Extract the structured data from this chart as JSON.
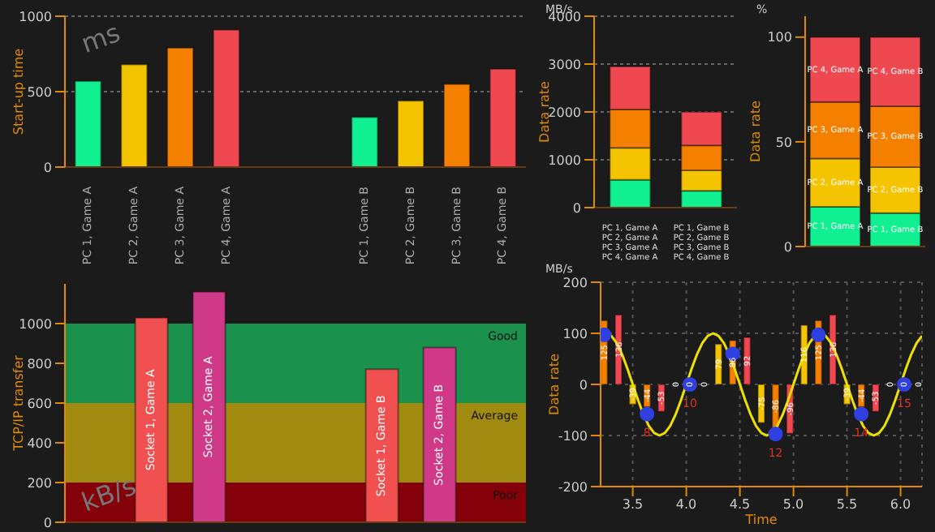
{
  "chart_data": [
    {
      "type": "bar",
      "ylabel": "Start-up time",
      "categories": [
        "PC 1, Game A",
        "PC 2, Game A",
        "PC 3, Game A",
        "PC 4, Game A",
        null,
        null,
        "PC 1, Game B",
        "PC 2, Game B",
        "PC 3, Game B",
        "PC 4, Game B"
      ],
      "values": [
        570,
        680,
        790,
        910,
        null,
        null,
        330,
        440,
        550,
        650
      ],
      "colors": [
        "#10f090",
        "#f5c400",
        "#f58000",
        "#f04850",
        "#10f090",
        "#f5c400",
        "#10f090",
        "#f5c400",
        "#f58000",
        "#f04850"
      ],
      "ylim": [
        0,
        1000
      ],
      "yticks": [
        0,
        500,
        1000
      ],
      "grid": "y",
      "annotations": [
        "ms"
      ]
    },
    {
      "type": "bar",
      "ylabel": "TCP/IP transfer",
      "categories": [
        null,
        "Socket 1, Game A",
        "Socket 2, Game A",
        null,
        null,
        "Socket 1, Game B",
        "Socket 2, Game B",
        null
      ],
      "values": [
        null,
        1030,
        1160,
        null,
        null,
        770,
        880,
        null
      ],
      "colors": [
        "#f05050",
        "#f05050",
        "#d03888",
        "#f05050",
        "#f05050",
        "#f05050",
        "#d03888",
        "#f05050"
      ],
      "ylim": [
        0,
        1200
      ],
      "yticks": [
        0,
        200,
        400,
        600,
        800,
        1000
      ],
      "bands": [
        {
          "axis": "y",
          "from": 0,
          "to": 200,
          "label": "Poor",
          "color": "#8a0008"
        },
        {
          "axis": "y",
          "from": 200,
          "to": 600,
          "label": "Average",
          "color": "#a89010"
        },
        {
          "axis": "y",
          "from": 600,
          "to": 1000,
          "label": "Good",
          "color": "#1a9850"
        }
      ],
      "annotations": [
        "kB/s"
      ]
    },
    {
      "type": "bar",
      "stacked": true,
      "ylabel": "Data rate",
      "categories": [
        "PC 1, Game A\nPC 2, Game A\nPC 3, Game A\nPC 4, Game A",
        "PC 1, Game B\nPC 2, Game B\nPC 3, Game B\nPC 4, Game B"
      ],
      "series": [
        {
          "color": "#10f090",
          "values": [
            580,
            350
          ]
        },
        {
          "color": "#f5c400",
          "values": [
            670,
            430
          ]
        },
        {
          "color": "#f58000",
          "values": [
            800,
            520
          ]
        },
        {
          "color": "#f04850",
          "values": [
            900,
            700
          ]
        }
      ],
      "ylim": [
        0,
        4000
      ],
      "yticks": [
        0,
        1000,
        2000,
        3000,
        4000
      ],
      "grid": "y",
      "annotations": [
        "MB/s"
      ]
    },
    {
      "type": "bar",
      "stacked": true,
      "ylabel": "Data rate",
      "categories": [
        null,
        null
      ],
      "series": [
        {
          "color": "#10f090",
          "values": [
            19,
            16
          ],
          "value_labels": [
            "PC 1, Game A",
            "PC 1, Game B"
          ]
        },
        {
          "color": "#f5c400",
          "values": [
            23,
            22
          ],
          "value_labels": [
            "PC 2, Game A",
            "PC 2, Game B"
          ]
        },
        {
          "color": "#f58000",
          "values": [
            27,
            29
          ],
          "value_labels": [
            "PC 3, Game A",
            "PC 3, Game B"
          ]
        },
        {
          "color": "#f04850",
          "values": [
            31,
            33
          ],
          "value_labels": [
            "PC 4, Game A",
            "PC 4, Game B"
          ]
        }
      ],
      "ylim": [
        0,
        110
      ],
      "yticks": [
        0,
        50,
        100
      ],
      "annotations": [
        "%"
      ]
    },
    {
      "type": "bar",
      "xlabel": "Time",
      "ylabel": "Data rate",
      "xlim": [
        3.2,
        6.2
      ],
      "xticks": [
        3.5,
        {
          "value": 4,
          "label": "4.0"
        },
        4.5,
        {
          "value": 5,
          "label": "5.0"
        },
        5.5,
        {
          "value": 6,
          "label": "6.0"
        }
      ],
      "ylim": [
        -200,
        200
      ],
      "yticks": [
        -200,
        -100,
        0,
        100,
        200
      ],
      "grid": true,
      "series": [
        {
          "type": "bar",
          "x": [
            3.233,
            3.367,
            3.5,
            3.633,
            3.767,
            3.9,
            4.033,
            4.167,
            4.3,
            4.433,
            4.567,
            4.7,
            4.833,
            4.967,
            5.1,
            5.233,
            5.367,
            5.5,
            5.633,
            5.767,
            5.9,
            6.033,
            6.167
          ],
          "values": [
            125,
            136,
            -39,
            -44,
            -53,
            0,
            0,
            0,
            79,
            86,
            92,
            -75,
            -86,
            -96,
            116,
            125,
            136,
            -39,
            -44,
            -53,
            0,
            0,
            0
          ],
          "value_labels": [
            "125",
            "136",
            "-39",
            "-44",
            "-53",
            "0",
            "0",
            "0",
            "79",
            "86",
            "92",
            "-75",
            "-86",
            "-96",
            "116",
            "125",
            "136",
            "-39",
            "-44",
            "-53",
            "0",
            "0",
            "0"
          ],
          "colors": [
            "#f58000",
            "#f04850",
            "#f5c400",
            "#f58000",
            "#f04850",
            "#f5c400",
            "#f58000",
            "#f04850",
            "#f5c400",
            "#f58000",
            "#f04850",
            "#f5c400",
            "#f58000",
            "#f04850",
            "#f5c400",
            "#f58000",
            "#f04850",
            "#f5c400",
            "#f58000",
            "#f04850",
            "#f5c400",
            "#f58000",
            "#f04850"
          ]
        },
        {
          "type": "line",
          "color": "#f0e000",
          "x": [
            3.2,
            3.25,
            3.3,
            3.35,
            3.4,
            3.45,
            3.5,
            3.55,
            3.6,
            3.65,
            3.7,
            3.75,
            3.8,
            3.85,
            3.9,
            3.95,
            4.0,
            4.05,
            4.1,
            4.15,
            4.2,
            4.25,
            4.3,
            4.35,
            4.4,
            4.45,
            4.5,
            4.55,
            4.6,
            4.65,
            4.7,
            4.75,
            4.8,
            4.85,
            4.9,
            4.95,
            5.0,
            5.05,
            5.1,
            5.15,
            5.2,
            5.25,
            5.3,
            5.35,
            5.4,
            5.45,
            5.5,
            5.55,
            5.6,
            5.65,
            5.7,
            5.75,
            5.8,
            5.85,
            5.9,
            5.95,
            6.0,
            6.05,
            6.1,
            6.15,
            6.2
          ],
          "values": [
            95,
            100,
            95,
            81,
            59,
            31,
            0,
            -31,
            -59,
            -81,
            -95,
            -100,
            -95,
            -81,
            -59,
            -31,
            0,
            31,
            59,
            81,
            95,
            100,
            95,
            81,
            59,
            31,
            0,
            -31,
            -59,
            -81,
            -95,
            -100,
            -95,
            -81,
            -59,
            -31,
            0,
            31,
            59,
            81,
            95,
            100,
            95,
            81,
            59,
            31,
            0,
            -31,
            -59,
            -81,
            -95,
            -100,
            -95,
            -81,
            -59,
            -31,
            0,
            31,
            59,
            81,
            95
          ]
        },
        {
          "type": "scatter",
          "color": "#3040e0",
          "marker": "circle",
          "x": [
            3.233,
            3.633,
            4.033,
            4.433,
            4.833,
            5.233,
            5.633,
            6.033
          ],
          "values": [
            97,
            -58,
            0,
            60,
            -97,
            97,
            -58,
            0
          ]
        }
      ],
      "annotations": [
        "MB/s",
        {
          "text": "8",
          "x": 3.633,
          "y": -58
        },
        {
          "text": "10",
          "x": 4.033,
          "y": 0
        },
        {
          "text": "12",
          "x": 4.833,
          "y": -97
        },
        {
          "text": "14",
          "x": 5.633,
          "y": -58
        },
        {
          "text": "15",
          "x": 6.033,
          "y": 0
        }
      ]
    }
  ]
}
